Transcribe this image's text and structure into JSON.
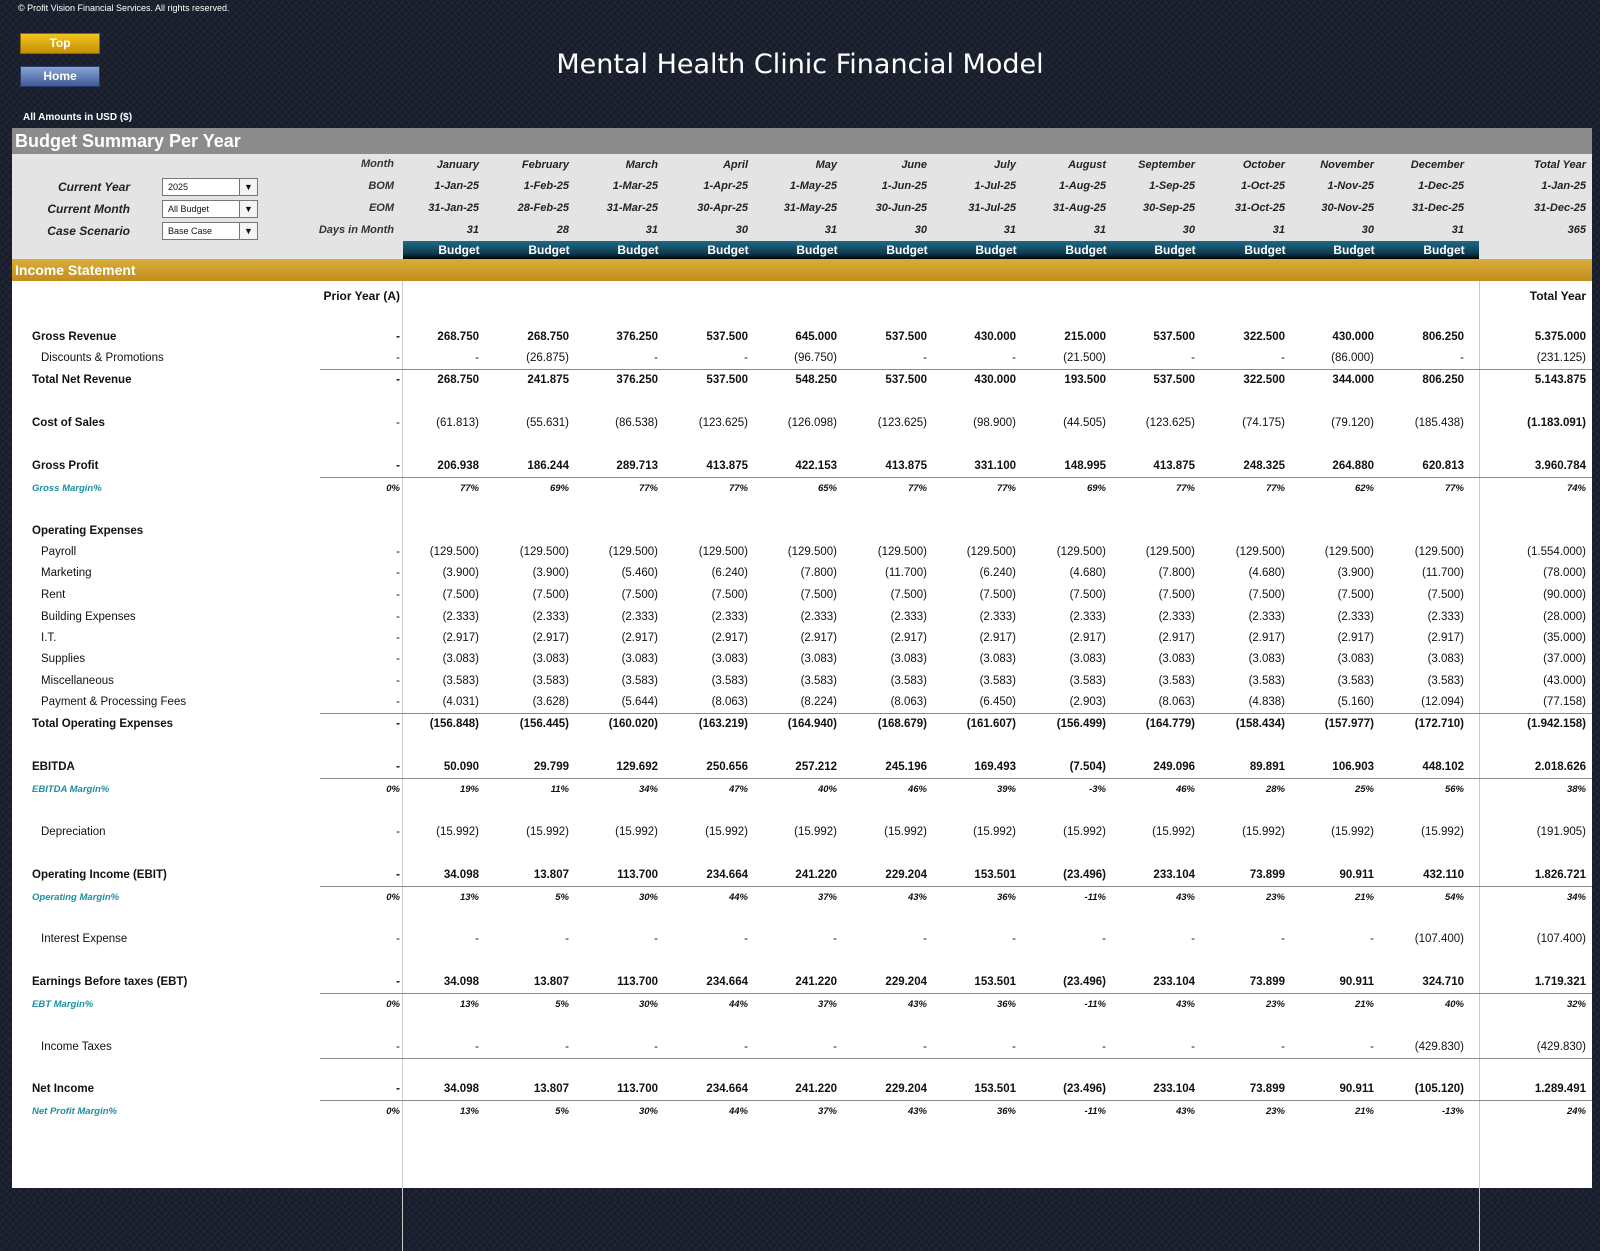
{
  "copyright": "© Profit Vision Financial Services. All rights reserved.",
  "nav": {
    "top": "Top",
    "home": "Home"
  },
  "title": "Mental Health Clinic Financial Model",
  "amounts_note": "All Amounts in  USD ($)",
  "summary_title": "Budget Summary Per Year",
  "controls": [
    {
      "label": "Current Year",
      "value": "2025"
    },
    {
      "label": "Current Month",
      "value": "All Budget"
    },
    {
      "label": "Case Scenario",
      "value": "Base Case"
    }
  ],
  "header_labels": {
    "month": "Month",
    "bom": "BOM",
    "eom": "EOM",
    "days": "Days in Month"
  },
  "months": [
    "January",
    "February",
    "March",
    "April",
    "May",
    "June",
    "July",
    "August",
    "September",
    "October",
    "November",
    "December",
    "Total Year"
  ],
  "bom": [
    "1-Jan-25",
    "1-Feb-25",
    "1-Mar-25",
    "1-Apr-25",
    "1-May-25",
    "1-Jun-25",
    "1-Jul-25",
    "1-Aug-25",
    "1-Sep-25",
    "1-Oct-25",
    "1-Nov-25",
    "1-Dec-25",
    "1-Jan-25"
  ],
  "eom": [
    "31-Jan-25",
    "28-Feb-25",
    "31-Mar-25",
    "30-Apr-25",
    "31-May-25",
    "30-Jun-25",
    "31-Jul-25",
    "31-Aug-25",
    "30-Sep-25",
    "31-Oct-25",
    "30-Nov-25",
    "31-Dec-25",
    "31-Dec-25"
  ],
  "days": [
    "31",
    "28",
    "31",
    "30",
    "31",
    "30",
    "31",
    "31",
    "30",
    "31",
    "30",
    "31",
    "365"
  ],
  "budget_label": "Budget",
  "income_statement_title": "Income Statement",
  "prior_year_header": "Prior Year (A)",
  "total_year_header": "Total Year",
  "rows": [
    {
      "label": "Gross Revenue",
      "bold": true,
      "rule": false,
      "prior": "-",
      "values": [
        "268.750",
        "268.750",
        "376.250",
        "537.500",
        "645.000",
        "537.500",
        "430.000",
        "215.000",
        "537.500",
        "322.500",
        "430.000",
        "806.250",
        "5.375.000"
      ]
    },
    {
      "label": "Discounts & Promotions",
      "indent": true,
      "rule": true,
      "prior": "-",
      "values": [
        "-",
        "(26.875)",
        "-",
        "-",
        "(96.750)",
        "-",
        "-",
        "(21.500)",
        "-",
        "-",
        "(86.000)",
        "-",
        "(231.125)"
      ]
    },
    {
      "label": "Total Net Revenue",
      "bold": true,
      "prior": "-",
      "values": [
        "268.750",
        "241.875",
        "376.250",
        "537.500",
        "548.250",
        "537.500",
        "430.000",
        "193.500",
        "537.500",
        "322.500",
        "344.000",
        "806.250",
        "5.143.875"
      ]
    },
    {
      "label": "Cost of Sales",
      "bold": true,
      "boldLabelOnly": true,
      "prior": "-",
      "values": [
        "(61.813)",
        "(55.631)",
        "(86.538)",
        "(123.625)",
        "(126.098)",
        "(123.625)",
        "(98.900)",
        "(44.505)",
        "(123.625)",
        "(74.175)",
        "(79.120)",
        "(185.438)",
        "(1.183.091)"
      ]
    },
    {
      "label": "Gross Profit",
      "bold": true,
      "rule": true,
      "prior": "-",
      "values": [
        "206.938",
        "186.244",
        "289.713",
        "413.875",
        "422.153",
        "413.875",
        "331.100",
        "148.995",
        "413.875",
        "248.325",
        "264.880",
        "620.813",
        "3.960.784"
      ]
    },
    {
      "label": "Gross Margin%",
      "margin": true,
      "prior": "0%",
      "values": [
        "77%",
        "69%",
        "77%",
        "77%",
        "65%",
        "77%",
        "77%",
        "69%",
        "77%",
        "77%",
        "62%",
        "77%",
        "74%"
      ]
    },
    {
      "label": "Operating Expenses",
      "bold": true,
      "section": true
    },
    {
      "label": "Payroll",
      "indent": true,
      "prior": "-",
      "values": [
        "(129.500)",
        "(129.500)",
        "(129.500)",
        "(129.500)",
        "(129.500)",
        "(129.500)",
        "(129.500)",
        "(129.500)",
        "(129.500)",
        "(129.500)",
        "(129.500)",
        "(129.500)",
        "(1.554.000)"
      ]
    },
    {
      "label": "Marketing",
      "indent": true,
      "prior": "-",
      "values": [
        "(3.900)",
        "(3.900)",
        "(5.460)",
        "(6.240)",
        "(7.800)",
        "(11.700)",
        "(6.240)",
        "(4.680)",
        "(7.800)",
        "(4.680)",
        "(3.900)",
        "(11.700)",
        "(78.000)"
      ]
    },
    {
      "label": "Rent",
      "indent": true,
      "prior": "-",
      "values": [
        "(7.500)",
        "(7.500)",
        "(7.500)",
        "(7.500)",
        "(7.500)",
        "(7.500)",
        "(7.500)",
        "(7.500)",
        "(7.500)",
        "(7.500)",
        "(7.500)",
        "(7.500)",
        "(90.000)"
      ]
    },
    {
      "label": "Building Expenses",
      "indent": true,
      "prior": "-",
      "values": [
        "(2.333)",
        "(2.333)",
        "(2.333)",
        "(2.333)",
        "(2.333)",
        "(2.333)",
        "(2.333)",
        "(2.333)",
        "(2.333)",
        "(2.333)",
        "(2.333)",
        "(2.333)",
        "(28.000)"
      ]
    },
    {
      "label": "I.T.",
      "indent": true,
      "prior": "-",
      "values": [
        "(2.917)",
        "(2.917)",
        "(2.917)",
        "(2.917)",
        "(2.917)",
        "(2.917)",
        "(2.917)",
        "(2.917)",
        "(2.917)",
        "(2.917)",
        "(2.917)",
        "(2.917)",
        "(35.000)"
      ]
    },
    {
      "label": "Supplies",
      "indent": true,
      "prior": "-",
      "values": [
        "(3.083)",
        "(3.083)",
        "(3.083)",
        "(3.083)",
        "(3.083)",
        "(3.083)",
        "(3.083)",
        "(3.083)",
        "(3.083)",
        "(3.083)",
        "(3.083)",
        "(3.083)",
        "(37.000)"
      ]
    },
    {
      "label": "Miscellaneous",
      "indent": true,
      "prior": "-",
      "values": [
        "(3.583)",
        "(3.583)",
        "(3.583)",
        "(3.583)",
        "(3.583)",
        "(3.583)",
        "(3.583)",
        "(3.583)",
        "(3.583)",
        "(3.583)",
        "(3.583)",
        "(3.583)",
        "(43.000)"
      ]
    },
    {
      "label": "Payment & Processing Fees",
      "indent": true,
      "rule": true,
      "prior": "-",
      "values": [
        "(4.031)",
        "(3.628)",
        "(5.644)",
        "(8.063)",
        "(8.224)",
        "(8.063)",
        "(6.450)",
        "(2.903)",
        "(8.063)",
        "(4.838)",
        "(5.160)",
        "(12.094)",
        "(77.158)"
      ]
    },
    {
      "label": "Total Operating Expenses",
      "bold": true,
      "prior": "-",
      "values": [
        "(156.848)",
        "(156.445)",
        "(160.020)",
        "(163.219)",
        "(164.940)",
        "(168.679)",
        "(161.607)",
        "(156.499)",
        "(164.779)",
        "(158.434)",
        "(157.977)",
        "(172.710)",
        "(1.942.158)"
      ]
    },
    {
      "label": "EBITDA",
      "bold": true,
      "rule": true,
      "prior": "-",
      "values": [
        "50.090",
        "29.799",
        "129.692",
        "250.656",
        "257.212",
        "245.196",
        "169.493",
        "(7.504)",
        "249.096",
        "89.891",
        "106.903",
        "448.102",
        "2.018.626"
      ]
    },
    {
      "label": "EBITDA Margin%",
      "margin": true,
      "prior": "0%",
      "values": [
        "19%",
        "11%",
        "34%",
        "47%",
        "40%",
        "46%",
        "39%",
        "-3%",
        "46%",
        "28%",
        "25%",
        "56%",
        "38%"
      ]
    },
    {
      "label": "Depreciation",
      "indent": true,
      "prior": "-",
      "values": [
        "(15.992)",
        "(15.992)",
        "(15.992)",
        "(15.992)",
        "(15.992)",
        "(15.992)",
        "(15.992)",
        "(15.992)",
        "(15.992)",
        "(15.992)",
        "(15.992)",
        "(15.992)",
        "(191.905)"
      ]
    },
    {
      "label": "Operating Income (EBIT)",
      "bold": true,
      "rule": true,
      "prior": "-",
      "values": [
        "34.098",
        "13.807",
        "113.700",
        "234.664",
        "241.220",
        "229.204",
        "153.501",
        "(23.496)",
        "233.104",
        "73.899",
        "90.911",
        "432.110",
        "1.826.721"
      ]
    },
    {
      "label": "Operating Margin%",
      "margin": true,
      "prior": "0%",
      "values": [
        "13%",
        "5%",
        "30%",
        "44%",
        "37%",
        "43%",
        "36%",
        "-11%",
        "43%",
        "23%",
        "21%",
        "54%",
        "34%"
      ]
    },
    {
      "label": "Interest Expense",
      "indent": true,
      "prior": "-",
      "values": [
        "-",
        "-",
        "-",
        "-",
        "-",
        "-",
        "-",
        "-",
        "-",
        "-",
        "-",
        "(107.400)",
        "(107.400)"
      ]
    },
    {
      "label": "Earnings Before taxes (EBT)",
      "bold": true,
      "rule": true,
      "prior": "-",
      "values": [
        "34.098",
        "13.807",
        "113.700",
        "234.664",
        "241.220",
        "229.204",
        "153.501",
        "(23.496)",
        "233.104",
        "73.899",
        "90.911",
        "324.710",
        "1.719.321"
      ]
    },
    {
      "label": "EBT Margin%",
      "margin": true,
      "prior": "0%",
      "values": [
        "13%",
        "5%",
        "30%",
        "44%",
        "37%",
        "43%",
        "36%",
        "-11%",
        "43%",
        "23%",
        "21%",
        "40%",
        "32%"
      ]
    },
    {
      "label": "Income Taxes",
      "indent": true,
      "rule": true,
      "prior": "-",
      "values": [
        "-",
        "-",
        "-",
        "-",
        "-",
        "-",
        "-",
        "-",
        "-",
        "-",
        "-",
        "(429.830)",
        "(429.830)"
      ]
    },
    {
      "label": "Net Income",
      "bold": true,
      "rule": true,
      "prior": "-",
      "values": [
        "34.098",
        "13.807",
        "113.700",
        "234.664",
        "241.220",
        "229.204",
        "153.501",
        "(23.496)",
        "233.104",
        "73.899",
        "90.911",
        "(105.120)",
        "1.289.491"
      ]
    },
    {
      "label": "Net Profit Margin%",
      "margin": true,
      "prior": "0%",
      "values": [
        "13%",
        "5%",
        "30%",
        "44%",
        "37%",
        "43%",
        "36%",
        "-11%",
        "43%",
        "23%",
        "21%",
        "-13%",
        "24%"
      ]
    }
  ]
}
